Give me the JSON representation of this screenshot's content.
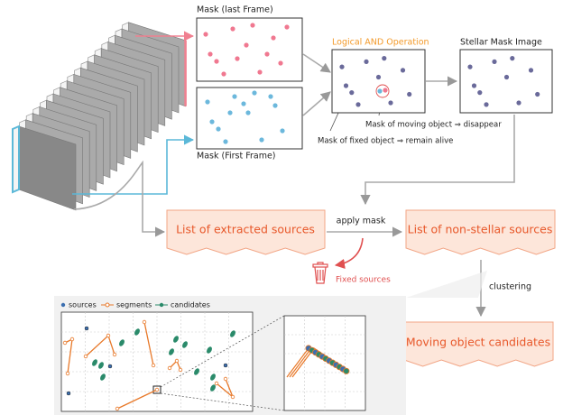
{
  "masks": {
    "last_frame": "Mask (last Frame)",
    "first_frame": "Mask (First Frame)"
  },
  "and_operation": {
    "title": "Logical AND Operation",
    "moving_note": "Mask of moving object ⇒ disappear",
    "fixed_note": "Mask of fixed object ⇒ remain alive"
  },
  "stellar_mask": {
    "title": "Stellar Mask Image"
  },
  "flow": {
    "extracted": "List of extracted sources",
    "apply_mask": "apply mask",
    "non_stellar": "List of non-stellar sources",
    "fixed_sources": "Fixed sources",
    "clustering": "clustering",
    "candidates": "Moving object candidates"
  },
  "plot_legend": [
    "sources",
    "segments",
    "candidates"
  ]
}
